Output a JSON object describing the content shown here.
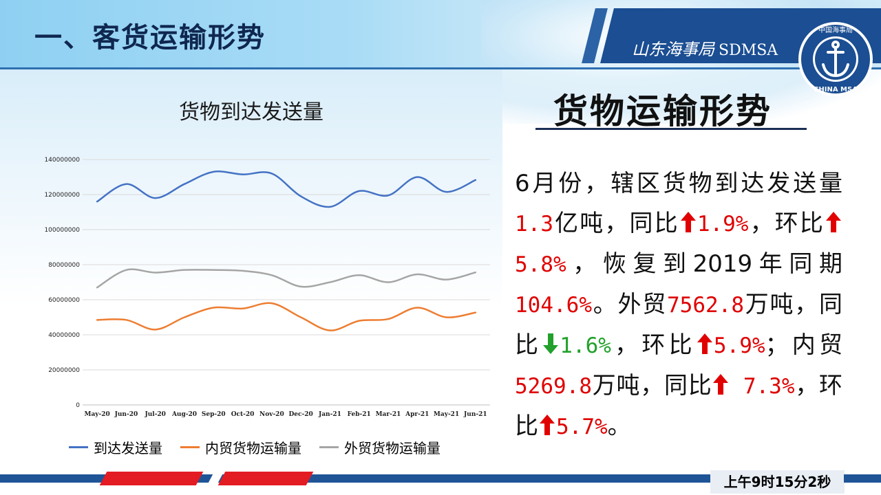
{
  "header": {
    "title": "一、客货运输形势",
    "brand_cn": "山东海事局",
    "brand_en": "SDMSA",
    "logo_top_text": "中国海事局",
    "logo_bottom_text": "CHINA MSA"
  },
  "chart_data": {
    "type": "line",
    "title": "货物到达发送量",
    "categories": [
      "May-20",
      "Jun-20",
      "Jul-20",
      "Aug-20",
      "Sep-20",
      "Oct-20",
      "Nov-20",
      "Dec-20",
      "Jan-21",
      "Feb-21",
      "Mar-21",
      "Apr-21",
      "May-21",
      "Jun-21"
    ],
    "ylim": [
      0,
      140000000
    ],
    "yticks": [
      0,
      20000000,
      40000000,
      60000000,
      80000000,
      100000000,
      120000000,
      140000000
    ],
    "grid": true,
    "legend_position": "bottom",
    "series": [
      {
        "name": "到达发送量",
        "color": "#4472c4",
        "values": [
          116000000,
          126000000,
          118000000,
          126000000,
          133000000,
          131500000,
          132000000,
          119000000,
          113000000,
          122000000,
          119500000,
          130000000,
          121500000,
          128300000
        ]
      },
      {
        "name": "内贸货物运输量",
        "color": "#ed7d31",
        "values": [
          48500000,
          48500000,
          43000000,
          50000000,
          55500000,
          55000000,
          58000000,
          50000000,
          42500000,
          48000000,
          49000000,
          55500000,
          50000000,
          52700000
        ]
      },
      {
        "name": "外贸货物运输量",
        "color": "#a5a5a5",
        "values": [
          67000000,
          77000000,
          75500000,
          77000000,
          77000000,
          76500000,
          74000000,
          67500000,
          70000000,
          74000000,
          70000000,
          74500000,
          71500000,
          75600000
        ]
      }
    ]
  },
  "side": {
    "title": "货物运输形势",
    "p1": "6月份，辖区货物到达发送量",
    "v1": "1.3",
    "p2": "亿吨，同比",
    "v2": "1.9%",
    "p3": "，环比",
    "v3": "5.8%",
    "p4": "，恢复到2019年同期",
    "v4": "104.6%",
    "p5": "。外贸",
    "v5": "7562.8",
    "p6": "万吨，同比",
    "v6": "1.6%",
    "p7": "，环比",
    "v7": "5.9%",
    "p8": "；内贸",
    "v8": "5269.8",
    "p9": "万吨，同比",
    "v9": " 7.3%",
    "p10": "，环比",
    "v10": "5.7%",
    "p11": "。"
  },
  "footer": {
    "time": "上午9时15分2秒"
  }
}
